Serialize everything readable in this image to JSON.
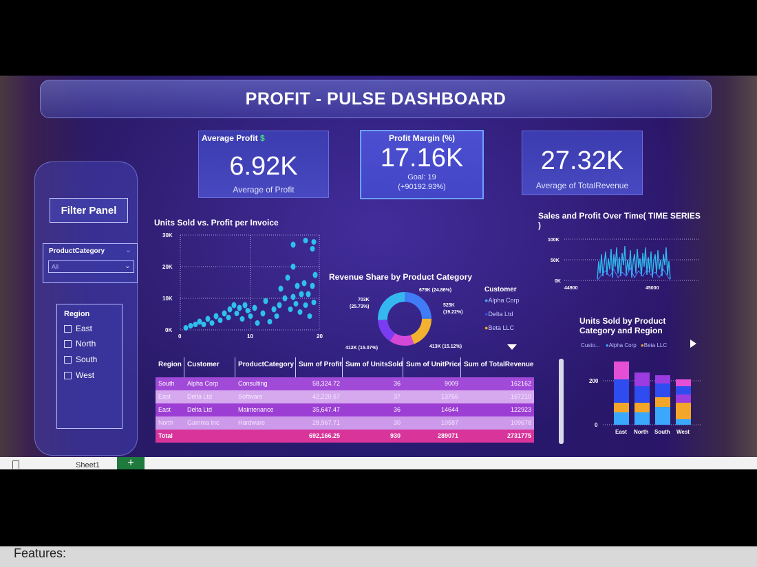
{
  "title": "PROFIT -  PULSE DASHBOARD",
  "kpis": {
    "avg_profit": {
      "title": "Average Profit",
      "icon": "$",
      "value": "6.92K",
      "subtitle": "Average of Profit"
    },
    "profit_margin": {
      "title": "Profit Margin (%)",
      "value": "17.16K",
      "goal": "Goal: 19",
      "goal_delta": "(+90192.93%)"
    },
    "avg_revenue": {
      "value": "27.32K",
      "subtitle": "Average of TotalRevenue"
    }
  },
  "filters": {
    "panel_title": "Filter Panel",
    "category": {
      "label": "ProductCategory",
      "selected": "All"
    },
    "region": {
      "label": "Region",
      "options": [
        "East",
        "North",
        "South",
        "West"
      ]
    }
  },
  "scatter": {
    "title": "Units Sold vs. Profit per Invoice",
    "y_ticks": [
      "30K",
      "20K",
      "10K",
      "0K"
    ],
    "x_ticks": [
      "0",
      "10",
      "20"
    ]
  },
  "timeseries": {
    "title_line1": "Sales and Profit Over Time( TIME SERIES",
    "title_line2": ")",
    "y_ticks": [
      "100K",
      "50K",
      "0K"
    ],
    "x_ticks": [
      "44900",
      "45000"
    ]
  },
  "donut": {
    "title": "Revenue Share by Product Category",
    "labels": [
      "679K (24.86%)",
      "525K",
      "(19.22%)",
      "413K (15.12%)",
      "412K (15.07%)",
      "703K",
      "(25.73%)"
    ]
  },
  "legend": {
    "title": "Customer",
    "items": [
      {
        "name": "Alpha Corp",
        "color": "#3aa8ff"
      },
      {
        "name": "Delta Ltd",
        "color": "#2f4cf0"
      },
      {
        "name": "Beta LLC",
        "color": "#f4a62a"
      }
    ]
  },
  "stacked": {
    "title_line1": "Units Sold by Product",
    "title_line2": "Category and Region",
    "legend_prefix": "Custo...",
    "legend_items": [
      "Alpha Corp",
      "Beta LLC"
    ],
    "y_ticks": [
      "200",
      "0"
    ],
    "categories": [
      "East",
      "North",
      "South",
      "West"
    ]
  },
  "table": {
    "headers": [
      "Region",
      "Customer",
      "ProductCategory",
      "Sum of Profit",
      "Sum of UnitsSold",
      "Sum of UnitPrice",
      "Sum of TotalRevenue"
    ],
    "rows": [
      [
        "South",
        "Alpha Corp",
        "Consulting",
        "58,324.72",
        "36",
        "9009",
        "162162"
      ],
      [
        "East",
        "Delta Ltd",
        "Software",
        "42,220.67",
        "37",
        "13766",
        "167210"
      ],
      [
        "East",
        "Delta Ltd",
        "Maintenance",
        "35,647.47",
        "36",
        "14644",
        "122923"
      ],
      [
        "North",
        "Gamma Inc",
        "Hardware",
        "28,967.71",
        "30",
        "10587",
        "109678"
      ]
    ],
    "total": [
      "Total",
      "",
      "",
      "692,166.25",
      "930",
      "289071",
      "2731775"
    ]
  },
  "taskbar": {
    "sheet": "Sheet1",
    "add": "+"
  },
  "footer": "Features:"
}
